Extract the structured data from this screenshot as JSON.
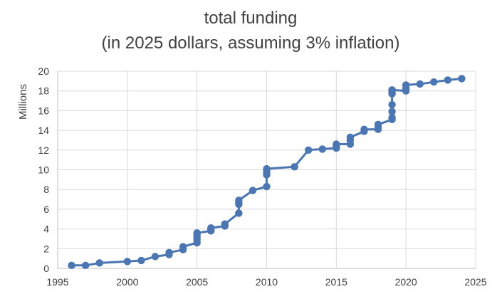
{
  "chart_data": {
    "type": "line",
    "title": [
      "total funding",
      "(in 2025 dollars, assuming 3% inflation)"
    ],
    "xlabel": "",
    "ylabel": "Millions",
    "xlim": [
      1995,
      2025
    ],
    "ylim": [
      0,
      20
    ],
    "xticks": [
      1995,
      2000,
      2005,
      2010,
      2015,
      2020,
      2025
    ],
    "yticks": [
      0,
      2,
      4,
      6,
      8,
      10,
      12,
      14,
      16,
      18,
      20
    ],
    "grid": true,
    "series_color": "#4a76b3",
    "series": [
      {
        "name": "total funding",
        "x": [
          1996,
          1997,
          1998,
          2000,
          2001,
          2002,
          2003,
          2003,
          2004,
          2004,
          2005,
          2005,
          2005,
          2005,
          2005,
          2006,
          2006,
          2006,
          2007,
          2007,
          2008,
          2008,
          2008,
          2008,
          2009,
          2010,
          2010,
          2010,
          2010,
          2012,
          2013,
          2014,
          2015,
          2015,
          2015,
          2016,
          2016,
          2016,
          2017,
          2017,
          2018,
          2018,
          2018,
          2019,
          2019,
          2019,
          2019,
          2019,
          2019,
          2019,
          2020,
          2020,
          2020,
          2020,
          2021,
          2022,
          2023,
          2024
        ],
        "y": [
          0.3,
          0.3,
          0.55,
          0.7,
          0.8,
          1.2,
          1.4,
          1.6,
          1.9,
          2.2,
          2.6,
          2.9,
          3.2,
          3.4,
          3.6,
          3.8,
          3.9,
          4.1,
          4.3,
          4.5,
          5.6,
          6.5,
          6.7,
          6.9,
          7.9,
          8.3,
          9.5,
          9.8,
          10.1,
          10.3,
          12.0,
          12.1,
          12.2,
          12.4,
          12.6,
          12.6,
          13.0,
          13.3,
          13.9,
          14.1,
          14.1,
          14.3,
          14.6,
          15.1,
          15.3,
          15.9,
          16.6,
          17.7,
          17.9,
          18.1,
          18.0,
          18.2,
          18.3,
          18.6,
          18.7,
          18.9,
          19.1,
          19.25
        ]
      }
    ]
  }
}
